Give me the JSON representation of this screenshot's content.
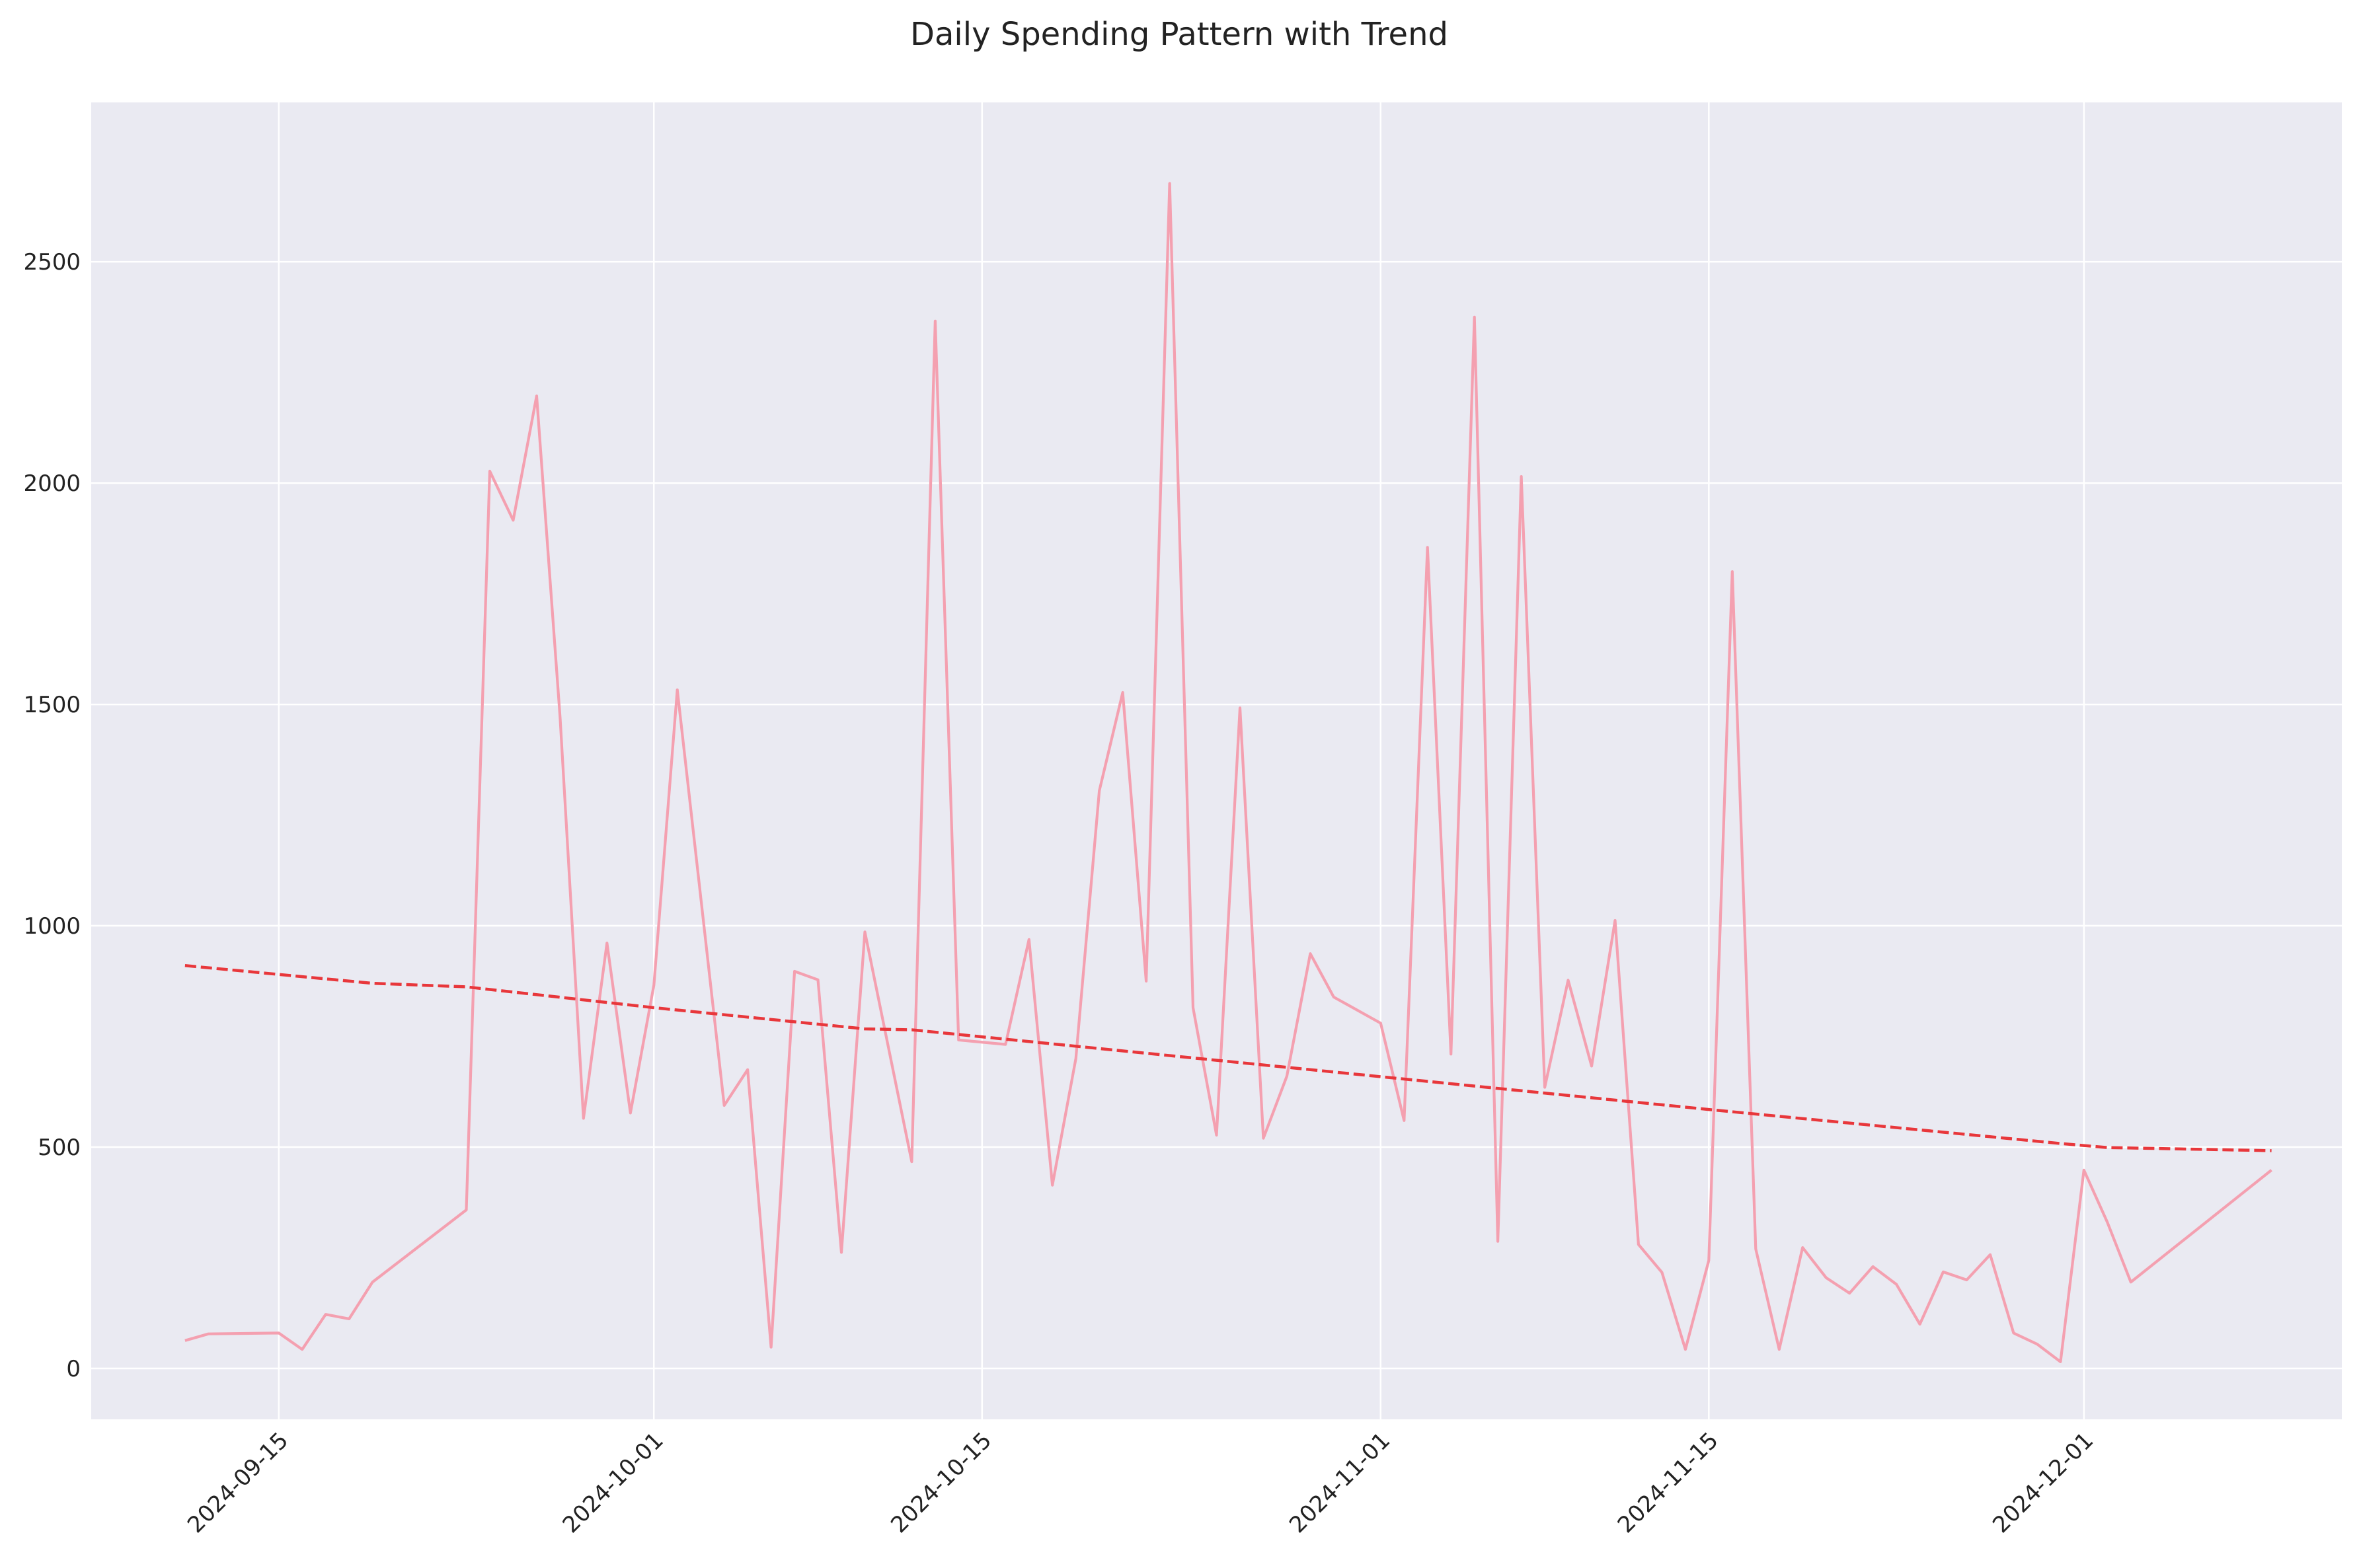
{
  "chart_data": {
    "type": "line",
    "title": "Daily Spending Pattern with Trend",
    "xlabel": "",
    "ylabel": "",
    "xlim": [
      "2024-09-07",
      "2024-12-12"
    ],
    "ylim": [
      -115,
      2860
    ],
    "grid": true,
    "legend": "none",
    "x_ticks": [
      "2024-09-15",
      "2024-10-01",
      "2024-10-15",
      "2024-11-01",
      "2024-11-15",
      "2024-12-01"
    ],
    "y_ticks": [
      0,
      500,
      1000,
      1500,
      2000,
      2500
    ],
    "background": "#eaeaf2",
    "series": [
      {
        "style": "solid",
        "color": "#f4a0b0",
        "x": [
          "2024-09-11",
          "2024-09-12",
          "2024-09-15",
          "2024-09-16",
          "2024-09-17",
          "2024-09-18",
          "2024-09-19",
          "2024-09-23",
          "2024-09-24",
          "2024-09-25",
          "2024-09-26",
          "2024-09-27",
          "2024-09-28",
          "2024-09-29",
          "2024-09-30",
          "2024-10-01",
          "2024-10-02",
          "2024-10-03",
          "2024-10-04",
          "2024-10-05",
          "2024-10-06",
          "2024-10-07",
          "2024-10-08",
          "2024-10-09",
          "2024-10-10",
          "2024-10-12",
          "2024-10-13",
          "2024-10-14",
          "2024-10-16",
          "2024-10-17",
          "2024-10-18",
          "2024-10-19",
          "2024-10-20",
          "2024-10-21",
          "2024-10-22",
          "2024-10-23",
          "2024-10-24",
          "2024-10-25",
          "2024-10-26",
          "2024-10-27",
          "2024-10-28",
          "2024-10-29",
          "2024-10-30",
          "2024-11-01",
          "2024-11-02",
          "2024-11-03",
          "2024-11-04",
          "2024-11-05",
          "2024-11-06",
          "2024-11-07",
          "2024-11-08",
          "2024-11-09",
          "2024-11-10",
          "2024-11-11",
          "2024-11-12",
          "2024-11-13",
          "2024-11-14",
          "2024-11-15",
          "2024-11-16",
          "2024-11-17",
          "2024-11-18",
          "2024-11-19",
          "2024-11-20",
          "2024-11-21",
          "2024-11-22",
          "2024-11-23",
          "2024-11-24",
          "2024-11-25",
          "2024-11-26",
          "2024-11-27",
          "2024-11-28",
          "2024-11-29",
          "2024-11-30",
          "2024-12-01",
          "2024-12-02",
          "2024-12-03",
          "2024-12-09"
        ],
        "y": [
          63,
          78,
          80,
          43,
          122,
          112,
          195,
          358,
          2027,
          1916,
          2197,
          1470,
          565,
          961,
          577,
          866,
          1533,
          1064,
          594,
          675,
          48,
          897,
          878,
          262,
          986,
          467,
          2366,
          742,
          732,
          969,
          414,
          700,
          1305,
          1527,
          875,
          2677,
          815,
          527,
          1492,
          520,
          660,
          937,
          839,
          780,
          560,
          1855,
          710,
          2375,
          287,
          2015,
          635,
          877,
          683,
          1012,
          280,
          217,
          43,
          244,
          1800,
          270,
          43,
          273,
          205,
          170,
          230,
          190,
          100,
          218,
          200,
          257,
          80,
          55,
          15,
          448,
          330,
          195,
          448
        ]
      },
      {
        "style": "dashed",
        "color": "#e8373b",
        "x": [
          "2024-09-11",
          "2024-09-19",
          "2024-09-23",
          "2024-10-01",
          "2024-10-10",
          "2024-10-12",
          "2024-11-15",
          "2024-11-30",
          "2024-12-02",
          "2024-12-09"
        ],
        "y": [
          910,
          870,
          862,
          815,
          767,
          765,
          585,
          508,
          499,
          492
        ]
      }
    ]
  }
}
